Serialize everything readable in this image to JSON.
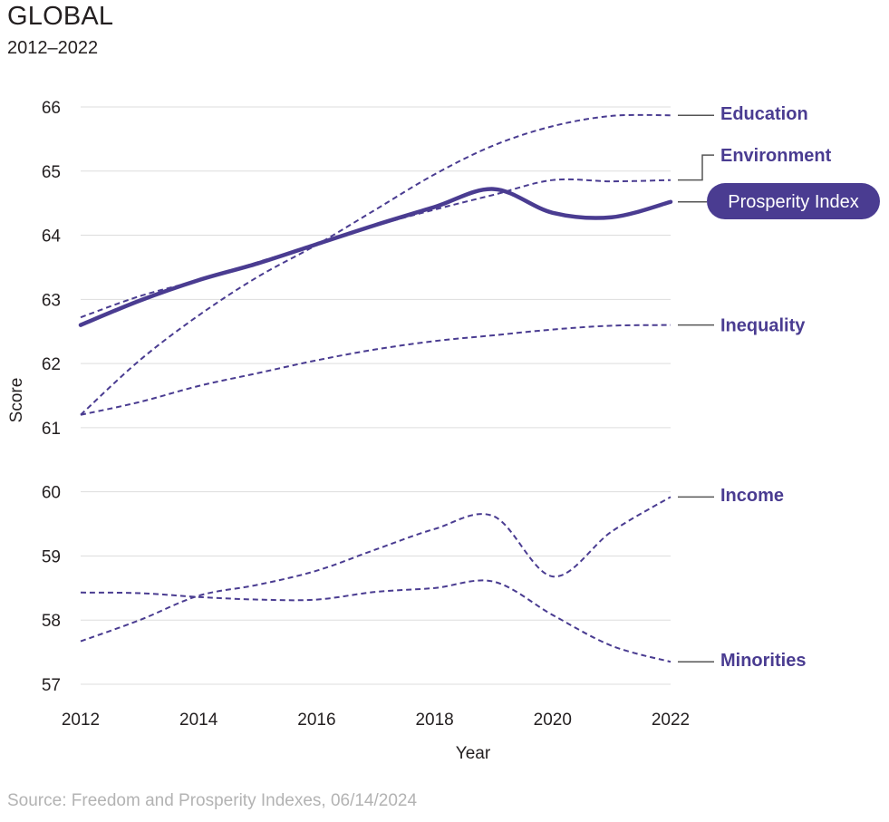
{
  "header": {
    "title": "GLOBAL",
    "subtitle": "2012–2022"
  },
  "footer": {
    "source": "Source: Freedom and Prosperity Indexes, 06/14/2024"
  },
  "colors": {
    "series": "#4a3c91",
    "grid": "#dddddd",
    "leader": "#555555",
    "pill_bg": "#4a3c91"
  },
  "chart_data": {
    "type": "line",
    "title": "GLOBAL",
    "subtitle": "2012–2022",
    "xlabel": "Year",
    "ylabel": "Score",
    "xlim": [
      2012,
      2022
    ],
    "ylim": [
      57,
      66
    ],
    "x_ticks": [
      2012,
      2014,
      2016,
      2018,
      2020,
      2022
    ],
    "y_ticks": [
      57,
      58,
      59,
      60,
      61,
      62,
      63,
      64,
      65,
      66
    ],
    "grid": "horizontal",
    "series": [
      {
        "name": "Education",
        "style": "dashed",
        "label_y": 65.9,
        "x": [
          2012,
          2013,
          2014,
          2015,
          2016,
          2017,
          2018,
          2019,
          2020,
          2021,
          2022
        ],
        "values": [
          61.2,
          62.05,
          62.75,
          63.35,
          63.85,
          64.4,
          64.95,
          65.4,
          65.7,
          65.86,
          65.87
        ]
      },
      {
        "name": "Environment",
        "style": "dashed",
        "label_y": 65.25,
        "x": [
          2012,
          2013,
          2014,
          2015,
          2016,
          2017,
          2018,
          2019,
          2020,
          2021,
          2022
        ],
        "values": [
          62.72,
          63.05,
          63.3,
          63.58,
          63.86,
          64.15,
          64.4,
          64.63,
          64.86,
          64.84,
          64.86
        ]
      },
      {
        "name": "Prosperity Index",
        "style": "solid",
        "highlight": true,
        "label_y": 64.53,
        "x": [
          2012,
          2013,
          2014,
          2015,
          2016,
          2017,
          2018,
          2019,
          2020,
          2021,
          2022
        ],
        "values": [
          62.6,
          62.98,
          63.3,
          63.56,
          63.86,
          64.16,
          64.44,
          64.72,
          64.35,
          64.28,
          64.52
        ]
      },
      {
        "name": "Inequality",
        "style": "dashed",
        "label_y": 62.6,
        "x": [
          2012,
          2013,
          2014,
          2015,
          2016,
          2017,
          2018,
          2019,
          2020,
          2021,
          2022
        ],
        "values": [
          61.2,
          61.4,
          61.65,
          61.85,
          62.05,
          62.22,
          62.35,
          62.44,
          62.53,
          62.59,
          62.6
        ]
      },
      {
        "name": "Income",
        "style": "dashed",
        "label_y": 59.95,
        "x": [
          2012,
          2013,
          2014,
          2015,
          2016,
          2017,
          2018,
          2019,
          2020,
          2021,
          2022
        ],
        "values": [
          57.67,
          58.0,
          58.38,
          58.55,
          58.77,
          59.1,
          59.42,
          59.62,
          58.68,
          59.38,
          59.92
        ]
      },
      {
        "name": "Minorities",
        "style": "dashed",
        "label_y": 57.38,
        "x": [
          2012,
          2013,
          2014,
          2015,
          2016,
          2017,
          2018,
          2019,
          2020,
          2021,
          2022
        ],
        "values": [
          58.43,
          58.42,
          58.36,
          58.32,
          58.32,
          58.44,
          58.5,
          58.6,
          58.08,
          57.6,
          57.35
        ]
      }
    ]
  }
}
